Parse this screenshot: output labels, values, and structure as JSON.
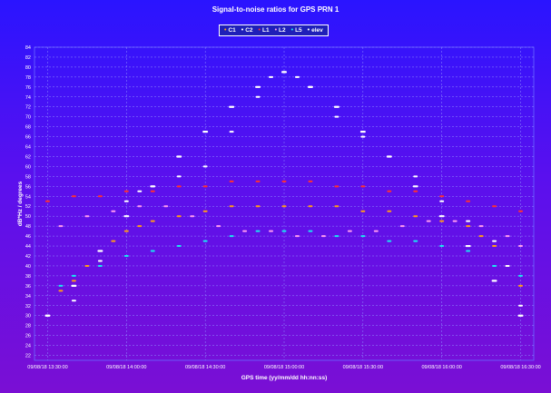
{
  "chart_data": {
    "type": "scatter",
    "title": "Signal-to-noise ratios for GPS PRN 1",
    "xlabel": "GPS time (yy/mm/dd hh:nn:ss)",
    "ylabel": "dB*Hz / degrees",
    "ylim": [
      21,
      84
    ],
    "y_ticks": [
      22,
      24,
      26,
      28,
      30,
      32,
      34,
      36,
      38,
      40,
      42,
      44,
      46,
      48,
      50,
      52,
      54,
      56,
      58,
      60,
      62,
      64,
      66,
      68,
      70,
      72,
      74,
      76,
      78,
      80,
      82,
      84
    ],
    "x_ticks": [
      "09/08/18 13:30:00",
      "09/08/18 14:00:00",
      "09/08/18 14:30:00",
      "09/08/18 15:00:00",
      "09/08/18 15:30:00",
      "09/08/18 16:00:00",
      "09/08/18 16:30:00"
    ],
    "grid": true,
    "legend_position": "top-center",
    "series": [
      {
        "name": "C1",
        "color": "#ff9a1a",
        "points": [
          [
            "13:35",
            35
          ],
          [
            "13:40",
            37
          ],
          [
            "13:45",
            40
          ],
          [
            "13:50",
            43
          ],
          [
            "13:55",
            45
          ],
          [
            "14:00",
            47
          ],
          [
            "14:05",
            48
          ],
          [
            "14:10",
            49
          ],
          [
            "14:20",
            50
          ],
          [
            "14:30",
            51
          ],
          [
            "14:40",
            52
          ],
          [
            "14:50",
            52
          ],
          [
            "15:00",
            52
          ],
          [
            "15:10",
            52
          ],
          [
            "15:20",
            52
          ],
          [
            "15:30",
            51
          ],
          [
            "15:40",
            51
          ],
          [
            "15:50",
            50
          ],
          [
            "16:00",
            49
          ],
          [
            "16:10",
            48
          ],
          [
            "16:15",
            46
          ],
          [
            "16:20",
            44
          ],
          [
            "16:25",
            40
          ],
          [
            "16:30",
            36
          ]
        ]
      },
      {
        "name": "C2",
        "color": "#ffffff",
        "points": [
          [
            "13:30",
            30
          ],
          [
            "13:40",
            33
          ],
          [
            "13:50",
            41
          ],
          [
            "14:00",
            53
          ],
          [
            "14:05",
            55
          ],
          [
            "14:10",
            56
          ],
          [
            "14:20",
            58
          ],
          [
            "14:30",
            60
          ],
          [
            "14:40",
            67
          ],
          [
            "14:50",
            74
          ],
          [
            "14:55",
            78
          ],
          [
            "15:00",
            79
          ],
          [
            "15:05",
            78
          ],
          [
            "15:10",
            76
          ],
          [
            "15:20",
            70
          ],
          [
            "15:30",
            66
          ],
          [
            "15:40",
            62
          ],
          [
            "15:50",
            58
          ],
          [
            "16:00",
            53
          ],
          [
            "16:10",
            49
          ],
          [
            "16:20",
            45
          ],
          [
            "16:25",
            40
          ],
          [
            "16:30",
            32
          ]
        ]
      },
      {
        "name": "L1",
        "color": "#ff3030",
        "points": [
          [
            "13:30",
            53
          ],
          [
            "13:40",
            54
          ],
          [
            "13:50",
            54
          ],
          [
            "14:00",
            55
          ],
          [
            "14:10",
            55
          ],
          [
            "14:20",
            56
          ],
          [
            "14:30",
            56
          ],
          [
            "14:40",
            57
          ],
          [
            "14:50",
            57
          ],
          [
            "15:00",
            57
          ],
          [
            "15:10",
            57
          ],
          [
            "15:20",
            56
          ],
          [
            "15:30",
            56
          ],
          [
            "15:40",
            55
          ],
          [
            "15:50",
            55
          ],
          [
            "16:00",
            54
          ],
          [
            "16:10",
            53
          ],
          [
            "16:20",
            52
          ],
          [
            "16:30",
            51
          ]
        ]
      },
      {
        "name": "L2",
        "color": "#ff9af0",
        "points": [
          [
            "13:35",
            48
          ],
          [
            "13:45",
            50
          ],
          [
            "13:55",
            51
          ],
          [
            "14:05",
            52
          ],
          [
            "14:15",
            52
          ],
          [
            "14:25",
            50
          ],
          [
            "14:35",
            48
          ],
          [
            "14:45",
            47
          ],
          [
            "14:55",
            47
          ],
          [
            "15:05",
            46
          ],
          [
            "15:15",
            46
          ],
          [
            "15:25",
            47
          ],
          [
            "15:35",
            47
          ],
          [
            "15:45",
            48
          ],
          [
            "15:55",
            49
          ],
          [
            "16:05",
            49
          ],
          [
            "16:15",
            48
          ],
          [
            "16:25",
            46
          ],
          [
            "16:30",
            44
          ]
        ]
      },
      {
        "name": "L5",
        "color": "#19e6f0",
        "points": [
          [
            "13:35",
            36
          ],
          [
            "13:40",
            38
          ],
          [
            "13:50",
            40
          ],
          [
            "14:00",
            42
          ],
          [
            "14:10",
            43
          ],
          [
            "14:20",
            44
          ],
          [
            "14:30",
            45
          ],
          [
            "14:40",
            46
          ],
          [
            "14:50",
            47
          ],
          [
            "15:00",
            47
          ],
          [
            "15:10",
            47
          ],
          [
            "15:20",
            46
          ],
          [
            "15:30",
            46
          ],
          [
            "15:40",
            45
          ],
          [
            "15:50",
            45
          ],
          [
            "16:00",
            44
          ],
          [
            "16:10",
            43
          ],
          [
            "16:20",
            40
          ],
          [
            "16:30",
            38
          ]
        ]
      },
      {
        "name": "elev",
        "color": "#ffffff",
        "points": [
          [
            "13:30",
            30
          ],
          [
            "13:40",
            36
          ],
          [
            "13:50",
            43
          ],
          [
            "14:00",
            50
          ],
          [
            "14:10",
            56
          ],
          [
            "14:20",
            62
          ],
          [
            "14:30",
            67
          ],
          [
            "14:40",
            72
          ],
          [
            "14:50",
            76
          ],
          [
            "15:00",
            79
          ],
          [
            "15:10",
            76
          ],
          [
            "15:20",
            72
          ],
          [
            "15:30",
            67
          ],
          [
            "15:40",
            62
          ],
          [
            "15:50",
            56
          ],
          [
            "16:00",
            50
          ],
          [
            "16:10",
            44
          ],
          [
            "16:20",
            37
          ],
          [
            "16:30",
            30
          ]
        ]
      }
    ]
  }
}
